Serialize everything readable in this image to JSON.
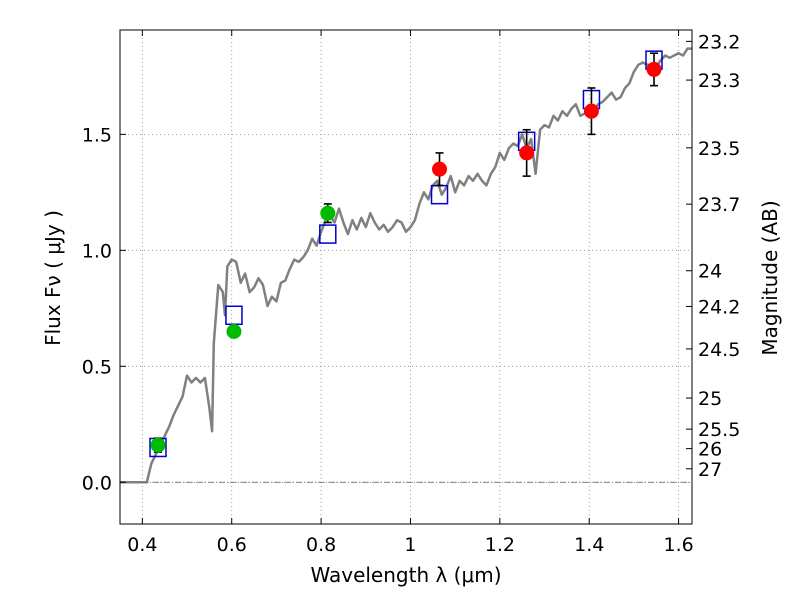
{
  "chart_data": {
    "type": "scatter",
    "title": "",
    "xlabel": "Wavelength  λ (μm)",
    "ylabel": "Flux  Fν  ( μJy )",
    "y2label": "Magnitude (AB)",
    "xlim": [
      0.35,
      1.63
    ],
    "ylim": [
      -0.18,
      1.95
    ],
    "grid": true,
    "x_ticks": [
      0.4,
      0.6,
      0.8,
      1.0,
      1.2,
      1.4,
      1.6
    ],
    "x_tick_labels": [
      "0.4",
      "0.6",
      "0.8",
      "1",
      "1.2",
      "1.4",
      "1.6"
    ],
    "y_ticks": [
      0.0,
      0.5,
      1.0,
      1.5
    ],
    "y_tick_labels": [
      "0.0",
      "0.5",
      "1.0",
      "1.5"
    ],
    "y2_ticks": [
      {
        "flux": 1.901,
        "label": "23.2"
      },
      {
        "flux": 1.734,
        "label": "23.3"
      },
      {
        "flux": 1.442,
        "label": "23.5"
      },
      {
        "flux": 1.199,
        "label": "23.7"
      },
      {
        "flux": 0.912,
        "label": "24"
      },
      {
        "flux": 0.758,
        "label": "24.2"
      },
      {
        "flux": 0.575,
        "label": "24.5"
      },
      {
        "flux": 0.363,
        "label": "25"
      },
      {
        "flux": 0.229,
        "label": "25.5"
      },
      {
        "flux": 0.145,
        "label": "26"
      },
      {
        "flux": 0.058,
        "label": "27"
      }
    ],
    "colors": {
      "sed": "#808080",
      "model_box": "#0000cc",
      "green_points": "#00bb00",
      "red_points": "#ff0000",
      "errorbar": "#000000",
      "grid": "#888888",
      "zero_line": "#555555"
    },
    "series": [
      {
        "kind": "sed_line",
        "x": [
          0.35,
          0.41,
          0.42,
          0.43,
          0.44,
          0.45,
          0.455,
          0.46,
          0.47,
          0.48,
          0.49,
          0.5,
          0.51,
          0.52,
          0.53,
          0.54,
          0.55,
          0.556,
          0.56,
          0.57,
          0.58,
          0.585,
          0.59,
          0.6,
          0.61,
          0.62,
          0.63,
          0.64,
          0.65,
          0.66,
          0.67,
          0.68,
          0.69,
          0.7,
          0.71,
          0.72,
          0.73,
          0.74,
          0.75,
          0.76,
          0.77,
          0.78,
          0.79,
          0.8,
          0.81,
          0.82,
          0.83,
          0.84,
          0.85,
          0.86,
          0.87,
          0.88,
          0.89,
          0.9,
          0.91,
          0.92,
          0.93,
          0.94,
          0.95,
          0.96,
          0.97,
          0.98,
          0.99,
          1.0,
          1.01,
          1.02,
          1.03,
          1.04,
          1.05,
          1.06,
          1.07,
          1.08,
          1.09,
          1.1,
          1.11,
          1.12,
          1.13,
          1.14,
          1.15,
          1.16,
          1.17,
          1.18,
          1.19,
          1.2,
          1.21,
          1.22,
          1.23,
          1.24,
          1.25,
          1.26,
          1.27,
          1.28,
          1.29,
          1.3,
          1.31,
          1.32,
          1.33,
          1.34,
          1.35,
          1.36,
          1.37,
          1.38,
          1.39,
          1.4,
          1.41,
          1.42,
          1.43,
          1.44,
          1.45,
          1.46,
          1.47,
          1.48,
          1.49,
          1.5,
          1.51,
          1.52,
          1.53,
          1.54,
          1.55,
          1.56,
          1.57,
          1.58,
          1.59,
          1.6,
          1.61,
          1.62,
          1.63
        ],
        "y": [
          0.0,
          0.0,
          0.08,
          0.12,
          0.16,
          0.2,
          0.22,
          0.24,
          0.29,
          0.33,
          0.37,
          0.46,
          0.43,
          0.45,
          0.43,
          0.45,
          0.32,
          0.22,
          0.6,
          0.85,
          0.82,
          0.72,
          0.93,
          0.96,
          0.95,
          0.86,
          0.9,
          0.82,
          0.84,
          0.88,
          0.85,
          0.76,
          0.8,
          0.78,
          0.86,
          0.87,
          0.92,
          0.96,
          0.95,
          0.97,
          1.0,
          1.05,
          1.02,
          1.08,
          1.13,
          1.15,
          1.12,
          1.18,
          1.12,
          1.07,
          1.13,
          1.09,
          1.14,
          1.1,
          1.16,
          1.12,
          1.09,
          1.11,
          1.08,
          1.1,
          1.13,
          1.12,
          1.08,
          1.1,
          1.13,
          1.2,
          1.25,
          1.22,
          1.28,
          1.3,
          1.24,
          1.27,
          1.32,
          1.25,
          1.3,
          1.28,
          1.32,
          1.3,
          1.33,
          1.3,
          1.28,
          1.33,
          1.36,
          1.42,
          1.39,
          1.44,
          1.46,
          1.45,
          1.5,
          1.44,
          1.48,
          1.33,
          1.52,
          1.54,
          1.53,
          1.58,
          1.56,
          1.6,
          1.58,
          1.61,
          1.63,
          1.58,
          1.59,
          1.62,
          1.6,
          1.63,
          1.64,
          1.66,
          1.68,
          1.65,
          1.66,
          1.7,
          1.72,
          1.77,
          1.8,
          1.81,
          1.8,
          1.8,
          1.79,
          1.82,
          1.84,
          1.83,
          1.84,
          1.85,
          1.84,
          1.87,
          1.87
        ]
      },
      {
        "kind": "model_boxes",
        "x": [
          0.435,
          0.605,
          0.815,
          1.065,
          1.26,
          1.405,
          1.545
        ],
        "y": [
          0.15,
          0.72,
          1.07,
          1.24,
          1.47,
          1.65,
          1.82
        ]
      },
      {
        "kind": "observed_green",
        "x": [
          0.435,
          0.605,
          0.815
        ],
        "y": [
          0.16,
          0.65,
          1.16
        ],
        "err": [
          0.03,
          0.02,
          0.04
        ]
      },
      {
        "kind": "observed_red",
        "x": [
          1.065,
          1.26,
          1.405,
          1.545
        ],
        "y": [
          1.35,
          1.42,
          1.6,
          1.78
        ],
        "err": [
          0.07,
          0.1,
          0.1,
          0.07
        ]
      }
    ]
  }
}
